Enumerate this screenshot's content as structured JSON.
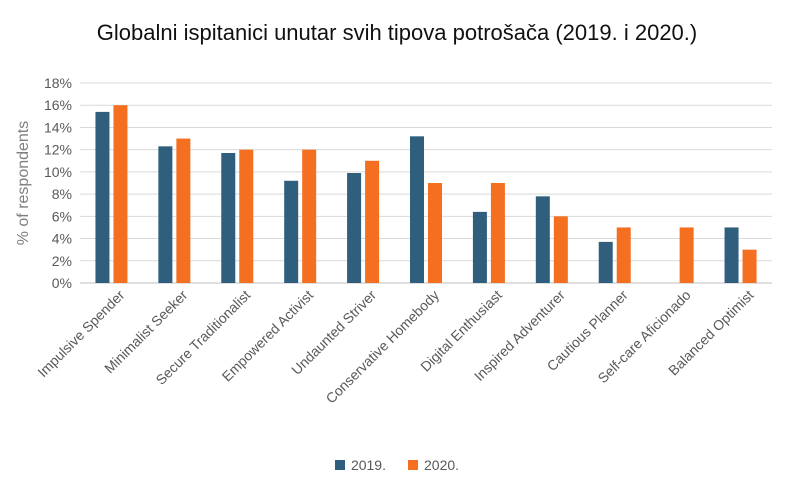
{
  "chart_data": {
    "type": "bar",
    "title": "Globalni ispitanici unutar svih tipova potrošača (2019. i 2020.)",
    "ylabel": "% of respondents",
    "xlabel": "",
    "ylim": [
      0,
      18
    ],
    "yticks": [
      "0%",
      "2%",
      "4%",
      "6%",
      "8%",
      "10%",
      "12%",
      "14%",
      "16%",
      "18%"
    ],
    "grid": true,
    "legend_position": "bottom",
    "categories": [
      "Impulsive Spender",
      "Minimalist Seeker",
      "Secure Traditionalist",
      "Empowered Activist",
      "Undaunted Striver",
      "Conservative Homebody",
      "Digital Enthusiast",
      "Inspired Adventurer",
      "Cautious Planner",
      "Self-care Aficionado",
      "Balanced Optimist"
    ],
    "series": [
      {
        "name": "2019.",
        "color": "#2f5f7d",
        "values": [
          15.4,
          12.3,
          11.7,
          9.2,
          9.9,
          13.2,
          6.4,
          7.8,
          3.7,
          null,
          5.0
        ]
      },
      {
        "name": "2020.",
        "color": "#f46f20",
        "values": [
          16.0,
          13.0,
          12.0,
          12.0,
          11.0,
          9.0,
          9.0,
          6.0,
          5.0,
          5.0,
          3.0
        ]
      }
    ]
  }
}
